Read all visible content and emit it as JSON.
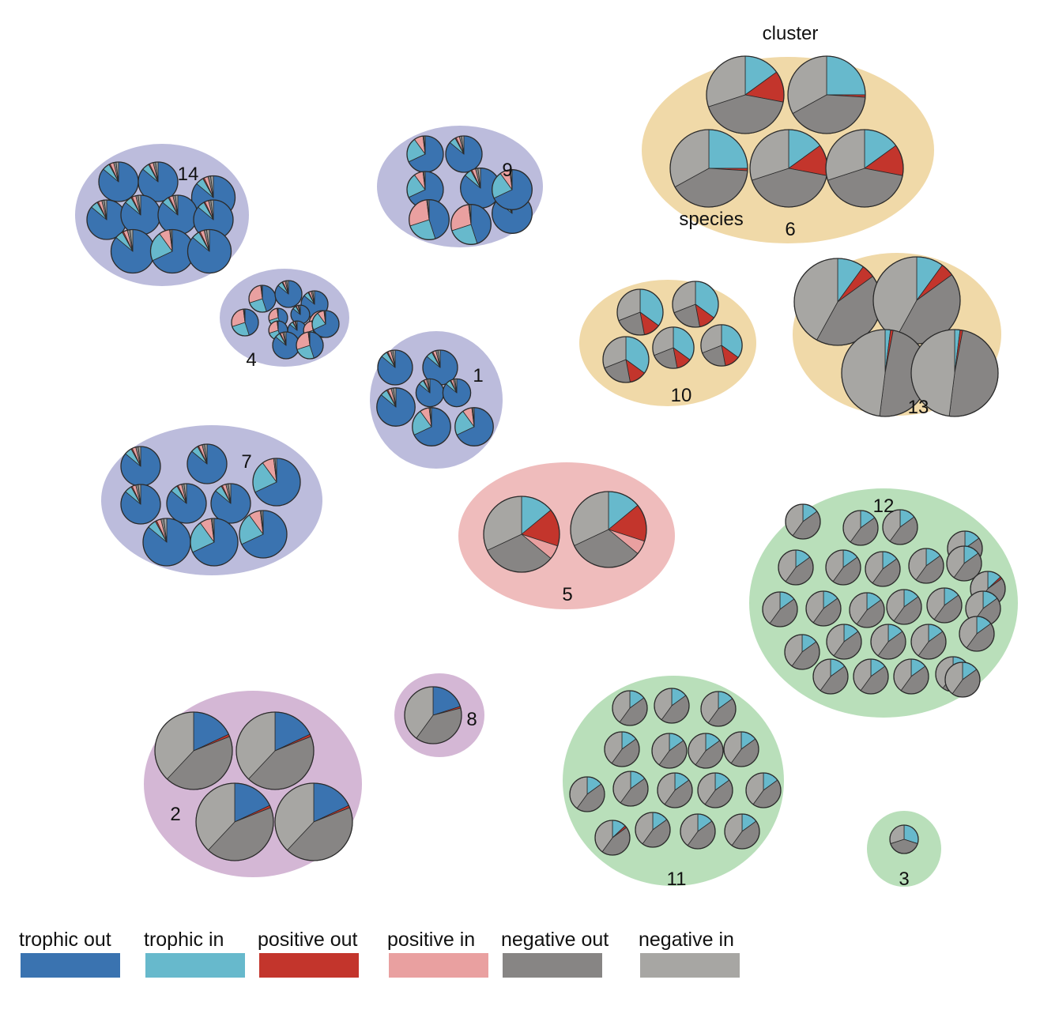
{
  "colors": {
    "trophic_out": "#3a73b0",
    "trophic_in": "#67b9cc",
    "positive_out": "#c3352c",
    "positive_in": "#e9a0a0",
    "negative_out": "#878584",
    "negative_in": "#a7a6a3",
    "blob_purple_blue": "#bcbcdc",
    "blob_orange": "#f0d9a8",
    "blob_pink": "#efbcbc",
    "blob_green": "#b9dfba",
    "blob_mauve": "#d4b7d5"
  },
  "annotations": {
    "cluster": "cluster",
    "species": "species"
  },
  "legend": [
    {
      "key": "trophic_out",
      "label": "trophic out"
    },
    {
      "key": "trophic_in",
      "label": "trophic in"
    },
    {
      "key": "positive_out",
      "label": "positive out"
    },
    {
      "key": "positive_in",
      "label": "positive in"
    },
    {
      "key": "negative_out",
      "label": "negative out"
    },
    {
      "key": "negative_in",
      "label": "negative in"
    }
  ],
  "pie_types": {
    "blue": [
      0.86,
      0.06,
      0.01,
      0.03,
      0.02,
      0.02
    ],
    "blue_mixed": [
      0.68,
      0.22,
      0.0,
      0.08,
      0.01,
      0.01
    ],
    "pinkish": [
      0.45,
      0.25,
      0.0,
      0.28,
      0.01,
      0.01
    ],
    "grey6": [
      0.0,
      0.15,
      0.13,
      0.0,
      0.42,
      0.3
    ],
    "grey6b": [
      0.0,
      0.25,
      0.01,
      0.0,
      0.41,
      0.33
    ],
    "grey10": [
      0.0,
      0.35,
      0.12,
      0.0,
      0.22,
      0.31
    ],
    "grey_red": [
      0.0,
      0.1,
      0.05,
      0.0,
      0.43,
      0.42
    ],
    "grey_thin": [
      0.0,
      0.02,
      0.01,
      0.0,
      0.49,
      0.48
    ],
    "grey5": [
      0.0,
      0.14,
      0.16,
      0.06,
      0.32,
      0.32
    ],
    "grey_cyan": [
      0.0,
      0.15,
      0.0,
      0.0,
      0.45,
      0.4
    ],
    "grey_cyan_red": [
      0.0,
      0.13,
      0.02,
      0.0,
      0.45,
      0.4
    ],
    "grey_blue": [
      0.18,
      0.0,
      0.01,
      0.0,
      0.43,
      0.38
    ],
    "grey_blue2": [
      0.2,
      0.0,
      0.01,
      0.0,
      0.39,
      0.4
    ],
    "grey3": [
      0.0,
      0.3,
      0.0,
      0.0,
      0.4,
      0.3
    ]
  },
  "clusters": [
    {
      "label": "14",
      "color_key": "blob_purple_blue",
      "pies": [
        {
          "size": 1.0,
          "type": "blue"
        },
        {
          "size": 1.0,
          "type": "blue"
        },
        {
          "size": 1.1,
          "type": "blue"
        },
        {
          "size": 1.0,
          "type": "blue"
        },
        {
          "size": 1.0,
          "type": "blue"
        },
        {
          "size": 1.0,
          "type": "blue"
        },
        {
          "size": 1.0,
          "type": "blue"
        },
        {
          "size": 1.1,
          "type": "blue"
        },
        {
          "size": 1.1,
          "type": "blue_mixed"
        },
        {
          "size": 1.1,
          "type": "blue"
        }
      ]
    },
    {
      "label": "9",
      "color_key": "blob_purple_blue",
      "pies": [
        {
          "size": 1.0,
          "type": "blue_mixed"
        },
        {
          "size": 1.0,
          "type": "blue"
        },
        {
          "size": 1.0,
          "type": "blue_mixed"
        },
        {
          "size": 1.1,
          "type": "blue"
        },
        {
          "size": 1.1,
          "type": "blue"
        },
        {
          "size": 1.1,
          "type": "pinkish"
        },
        {
          "size": 1.1,
          "type": "pinkish"
        },
        {
          "size": 1.1,
          "type": "blue_mixed"
        }
      ]
    },
    {
      "label": "4",
      "color_key": "blob_purple_blue",
      "pies": [
        {
          "size": 1.0,
          "type": "pinkish"
        },
        {
          "size": 1.0,
          "type": "blue"
        },
        {
          "size": 1.0,
          "type": "blue"
        },
        {
          "size": 1.0,
          "type": "pinkish"
        },
        {
          "size": 0.7,
          "type": "pinkish"
        },
        {
          "size": 0.7,
          "type": "blue"
        },
        {
          "size": 1.0,
          "type": "pinkish"
        },
        {
          "size": 0.7,
          "type": "pinkish"
        },
        {
          "size": 0.7,
          "type": "blue"
        },
        {
          "size": 0.7,
          "type": "pinkish"
        },
        {
          "size": 1.0,
          "type": "blue_mixed"
        },
        {
          "size": 1.0,
          "type": "blue"
        },
        {
          "size": 1.0,
          "type": "pinkish"
        }
      ]
    },
    {
      "label": "1",
      "color_key": "blob_purple_blue",
      "pies": [
        {
          "size": 1.0,
          "type": "blue"
        },
        {
          "size": 1.0,
          "type": "blue"
        },
        {
          "size": 0.8,
          "type": "blue"
        },
        {
          "size": 0.8,
          "type": "blue"
        },
        {
          "size": 1.1,
          "type": "blue"
        },
        {
          "size": 1.1,
          "type": "blue_mixed"
        },
        {
          "size": 1.1,
          "type": "blue_mixed"
        }
      ]
    },
    {
      "label": "7",
      "color_key": "blob_purple_blue",
      "pies": [
        {
          "size": 1.0,
          "type": "blue"
        },
        {
          "size": 1.0,
          "type": "blue"
        },
        {
          "size": 1.2,
          "type": "blue_mixed"
        },
        {
          "size": 1.0,
          "type": "blue"
        },
        {
          "size": 1.0,
          "type": "blue"
        },
        {
          "size": 1.0,
          "type": "blue"
        },
        {
          "size": 1.2,
          "type": "blue"
        },
        {
          "size": 1.2,
          "type": "blue_mixed"
        },
        {
          "size": 1.2,
          "type": "blue_mixed"
        }
      ]
    },
    {
      "label": "6",
      "color_key": "blob_orange",
      "pies": [
        {
          "size": 1.0,
          "type": "grey6"
        },
        {
          "size": 1.0,
          "type": "grey6b"
        },
        {
          "size": 1.0,
          "type": "grey6b"
        },
        {
          "size": 1.0,
          "type": "grey6"
        },
        {
          "size": 1.0,
          "type": "grey6"
        }
      ]
    },
    {
      "label": "10",
      "color_key": "blob_orange",
      "pies": [
        {
          "size": 1.0,
          "type": "grey10"
        },
        {
          "size": 1.0,
          "type": "grey10"
        },
        {
          "size": 1.0,
          "type": "grey10"
        },
        {
          "size": 0.9,
          "type": "grey10"
        },
        {
          "size": 0.9,
          "type": "grey10"
        }
      ]
    },
    {
      "label": "13",
      "color_key": "blob_orange",
      "pies": [
        {
          "size": 1.0,
          "type": "grey_red"
        },
        {
          "size": 1.0,
          "type": "grey_red"
        },
        {
          "size": 1.0,
          "type": "grey_thin"
        },
        {
          "size": 1.0,
          "type": "grey_thin"
        }
      ]
    },
    {
      "label": "5",
      "color_key": "blob_pink",
      "pies": [
        {
          "size": 1.0,
          "type": "grey5"
        },
        {
          "size": 1.0,
          "type": "grey5"
        }
      ]
    },
    {
      "label": "12",
      "color_key": "blob_green",
      "pies": [
        {
          "size": 1.0,
          "type": "grey_cyan"
        },
        {
          "size": 1.0,
          "type": "grey_cyan"
        },
        {
          "size": 1.0,
          "type": "grey_cyan"
        },
        {
          "size": 1.0,
          "type": "grey_cyan"
        },
        {
          "size": 1.0,
          "type": "grey_cyan"
        },
        {
          "size": 1.0,
          "type": "grey_cyan"
        },
        {
          "size": 1.0,
          "type": "grey_cyan"
        },
        {
          "size": 1.0,
          "type": "grey_cyan"
        },
        {
          "size": 1.0,
          "type": "grey_cyan"
        },
        {
          "size": 1.0,
          "type": "grey_cyan_red"
        },
        {
          "size": 1.0,
          "type": "grey_cyan"
        },
        {
          "size": 1.0,
          "type": "grey_cyan"
        },
        {
          "size": 1.0,
          "type": "grey_cyan"
        },
        {
          "size": 1.0,
          "type": "grey_cyan"
        },
        {
          "size": 1.0,
          "type": "grey_cyan"
        },
        {
          "size": 1.0,
          "type": "grey_cyan"
        },
        {
          "size": 1.0,
          "type": "grey_cyan"
        },
        {
          "size": 1.0,
          "type": "grey_cyan"
        },
        {
          "size": 1.0,
          "type": "grey_cyan"
        },
        {
          "size": 1.0,
          "type": "grey_cyan"
        },
        {
          "size": 1.0,
          "type": "grey_cyan"
        },
        {
          "size": 1.0,
          "type": "grey_cyan"
        },
        {
          "size": 1.0,
          "type": "grey_cyan"
        },
        {
          "size": 1.0,
          "type": "grey_cyan"
        },
        {
          "size": 1.0,
          "type": "grey_cyan"
        },
        {
          "size": 1.0,
          "type": "grey_cyan"
        }
      ]
    },
    {
      "label": "11",
      "color_key": "blob_green",
      "pies": [
        {
          "size": 1.0,
          "type": "grey_cyan"
        },
        {
          "size": 1.0,
          "type": "grey_cyan"
        },
        {
          "size": 1.0,
          "type": "grey_cyan"
        },
        {
          "size": 1.0,
          "type": "grey_cyan"
        },
        {
          "size": 1.0,
          "type": "grey_cyan"
        },
        {
          "size": 1.0,
          "type": "grey_cyan"
        },
        {
          "size": 1.0,
          "type": "grey_cyan"
        },
        {
          "size": 1.0,
          "type": "grey_cyan"
        },
        {
          "size": 1.0,
          "type": "grey_cyan"
        },
        {
          "size": 1.0,
          "type": "grey_cyan"
        },
        {
          "size": 1.0,
          "type": "grey_cyan"
        },
        {
          "size": 1.0,
          "type": "grey_cyan"
        },
        {
          "size": 1.0,
          "type": "grey_cyan_red"
        },
        {
          "size": 1.0,
          "type": "grey_cyan"
        },
        {
          "size": 1.0,
          "type": "grey_cyan"
        },
        {
          "size": 1.0,
          "type": "grey_cyan"
        }
      ]
    },
    {
      "label": "3",
      "color_key": "blob_green",
      "pies": [
        {
          "size": 1.0,
          "type": "grey3"
        }
      ]
    },
    {
      "label": "8",
      "color_key": "blob_mauve",
      "pies": [
        {
          "size": 1.0,
          "type": "grey_blue2"
        }
      ]
    },
    {
      "label": "2",
      "color_key": "blob_mauve",
      "pies": [
        {
          "size": 1.0,
          "type": "grey_blue"
        },
        {
          "size": 1.0,
          "type": "grey_blue"
        },
        {
          "size": 1.0,
          "type": "grey_blue"
        },
        {
          "size": 1.0,
          "type": "grey_blue"
        }
      ]
    }
  ]
}
